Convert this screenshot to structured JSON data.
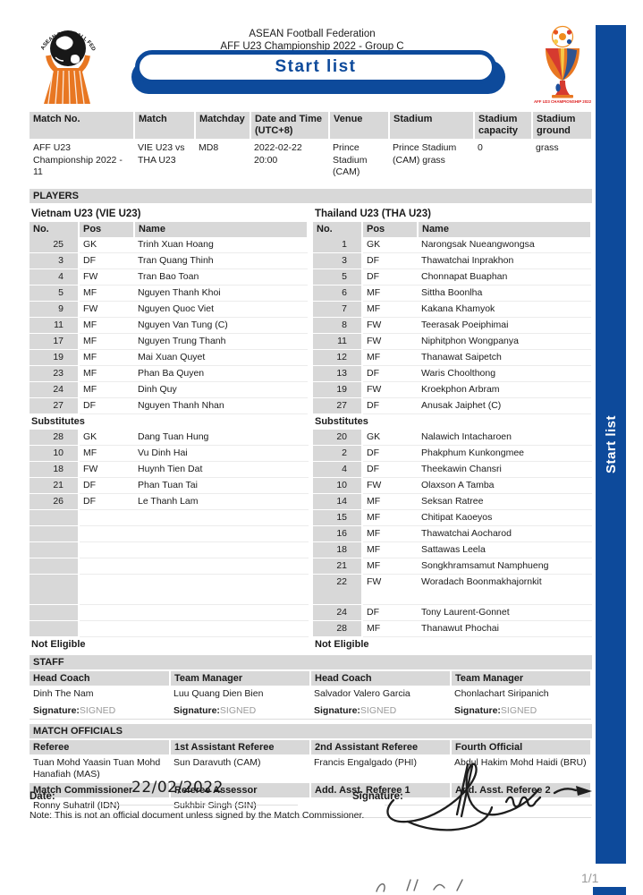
{
  "header": {
    "federation": "ASEAN Football Federation",
    "competition": "AFF U23 Championship 2022 - Group C",
    "banner_title": "Start list",
    "sidebar_label": "Start list",
    "trophy_caption": "AFF U23 CHAMPIONSHIP 2022"
  },
  "colors": {
    "primary_blue": "#0d4a9b",
    "brand_orange": "#e87722",
    "header_gray": "#d8d8d8"
  },
  "match_info": {
    "headers": [
      "Match No.",
      "Match",
      "Matchday",
      "Date and Time (UTC+8)",
      "Venue",
      "Stadium",
      "Stadium capacity",
      "Stadium ground"
    ],
    "row": [
      "AFF U23 Championship 2022 - 11",
      "VIE U23 vs THA U23",
      "MD8",
      "2022-02-22 20:00",
      "Prince Stadium (CAM)",
      "Prince Stadium (CAM) grass",
      "0",
      "grass"
    ]
  },
  "players": {
    "section_title": "PLAYERS",
    "col_headers": [
      "No.",
      "Pos",
      "Name"
    ],
    "substitutes_label": "Substitutes",
    "not_eligible_label": "Not Eligible",
    "teams": [
      {
        "name": "Vietnam U23 (VIE U23)",
        "starters": [
          [
            "25",
            "GK",
            "Trinh Xuan Hoang"
          ],
          [
            "3",
            "DF",
            "Tran Quang Thinh"
          ],
          [
            "4",
            "FW",
            "Tran Bao Toan"
          ],
          [
            "5",
            "MF",
            "Nguyen Thanh Khoi"
          ],
          [
            "9",
            "FW",
            "Nguyen Quoc Viet"
          ],
          [
            "11",
            "MF",
            "Nguyen Van Tung (C)"
          ],
          [
            "17",
            "MF",
            "Nguyen Trung Thanh"
          ],
          [
            "19",
            "MF",
            "Mai Xuan Quyet"
          ],
          [
            "23",
            "MF",
            "Phan Ba Quyen"
          ],
          [
            "24",
            "MF",
            "Dinh Quy"
          ],
          [
            "27",
            "DF",
            "Nguyen Thanh Nhan"
          ]
        ],
        "substitutes": [
          [
            "28",
            "GK",
            "Dang Tuan Hung"
          ],
          [
            "10",
            "MF",
            "Vu Dinh Hai"
          ],
          [
            "18",
            "FW",
            "Huynh Tien Dat"
          ],
          [
            "21",
            "DF",
            "Phan Tuan Tai"
          ],
          [
            "26",
            "DF",
            "Le Thanh Lam"
          ]
        ]
      },
      {
        "name": "Thailand U23 (THA U23)",
        "starters": [
          [
            "1",
            "GK",
            "Narongsak Nueangwongsa"
          ],
          [
            "3",
            "DF",
            "Thawatchai Inprakhon"
          ],
          [
            "5",
            "DF",
            "Chonnapat Buaphan"
          ],
          [
            "6",
            "MF",
            "Sittha Boonlha"
          ],
          [
            "7",
            "MF",
            "Kakana Khamyok"
          ],
          [
            "8",
            "FW",
            "Teerasak Poeiphimai"
          ],
          [
            "11",
            "FW",
            "Niphitphon Wongpanya"
          ],
          [
            "12",
            "MF",
            "Thanawat Saipetch"
          ],
          [
            "13",
            "DF",
            "Waris Choolthong"
          ],
          [
            "19",
            "FW",
            "Kroekphon Arbram"
          ],
          [
            "27",
            "DF",
            "Anusak Jaiphet (C)"
          ]
        ],
        "substitutes": [
          [
            "20",
            "GK",
            "Nalawich Intacharoen"
          ],
          [
            "2",
            "DF",
            "Phakphum Kunkongmee"
          ],
          [
            "4",
            "DF",
            "Theekawin Chansri"
          ],
          [
            "10",
            "FW",
            "Olaxson A Tamba"
          ],
          [
            "14",
            "MF",
            "Seksan Ratree"
          ],
          [
            "15",
            "MF",
            "Chitipat Kaoeyos"
          ],
          [
            "16",
            "MF",
            "Thawatchai Aocharod"
          ],
          [
            "18",
            "MF",
            "Sattawas Leela"
          ],
          [
            "21",
            "MF",
            "Songkhramsamut Namphueng"
          ],
          [
            "22",
            "FW",
            "Woradach Boonmakhajornkit"
          ],
          [
            "24",
            "DF",
            "Tony Laurent-Gonnet"
          ],
          [
            "28",
            "MF",
            "Thanawut Phochai"
          ]
        ]
      }
    ]
  },
  "staff": {
    "section_title": "STAFF",
    "signature_label": "Signature:",
    "signed_value": "SIGNED",
    "entries": [
      {
        "role": "Head Coach",
        "name": "Dinh The Nam"
      },
      {
        "role": "Team Manager",
        "name": "Luu Quang Dien Bien"
      },
      {
        "role": "Head Coach",
        "name": "Salvador Valero Garcia"
      },
      {
        "role": "Team Manager",
        "name": "Chonlachart Siripanich"
      }
    ]
  },
  "officials": {
    "section_title": "MATCH OFFICIALS",
    "rows": [
      [
        {
          "role": "Referee",
          "name": "Tuan Mohd Yaasin Tuan Mohd Hanafiah (MAS)"
        },
        {
          "role": "1st Assistant Referee",
          "name": "Sun Daravuth (CAM)"
        },
        {
          "role": "2nd Assistant Referee",
          "name": "Francis Engalgado (PHI)"
        },
        {
          "role": "Fourth Official",
          "name": "Abdul Hakim Mohd Haidi (BRU)"
        }
      ],
      [
        {
          "role": "Match Commissioner",
          "name": "Ronny Suhatril (IDN)"
        },
        {
          "role": "Referee Assessor",
          "name": "Sukhbir Singh (SIN)"
        },
        {
          "role": "Add. Asst. Referee 1",
          "name": ""
        },
        {
          "role": "Add. Asst. Referee 2",
          "name": ""
        }
      ]
    ]
  },
  "footer": {
    "date_label": "Date:",
    "date_value": "22/02/2022",
    "signature_label": "Signature:",
    "note": "Note: This is not an official document unless signed by the Match Commissioner.",
    "page_number": "1/1"
  }
}
